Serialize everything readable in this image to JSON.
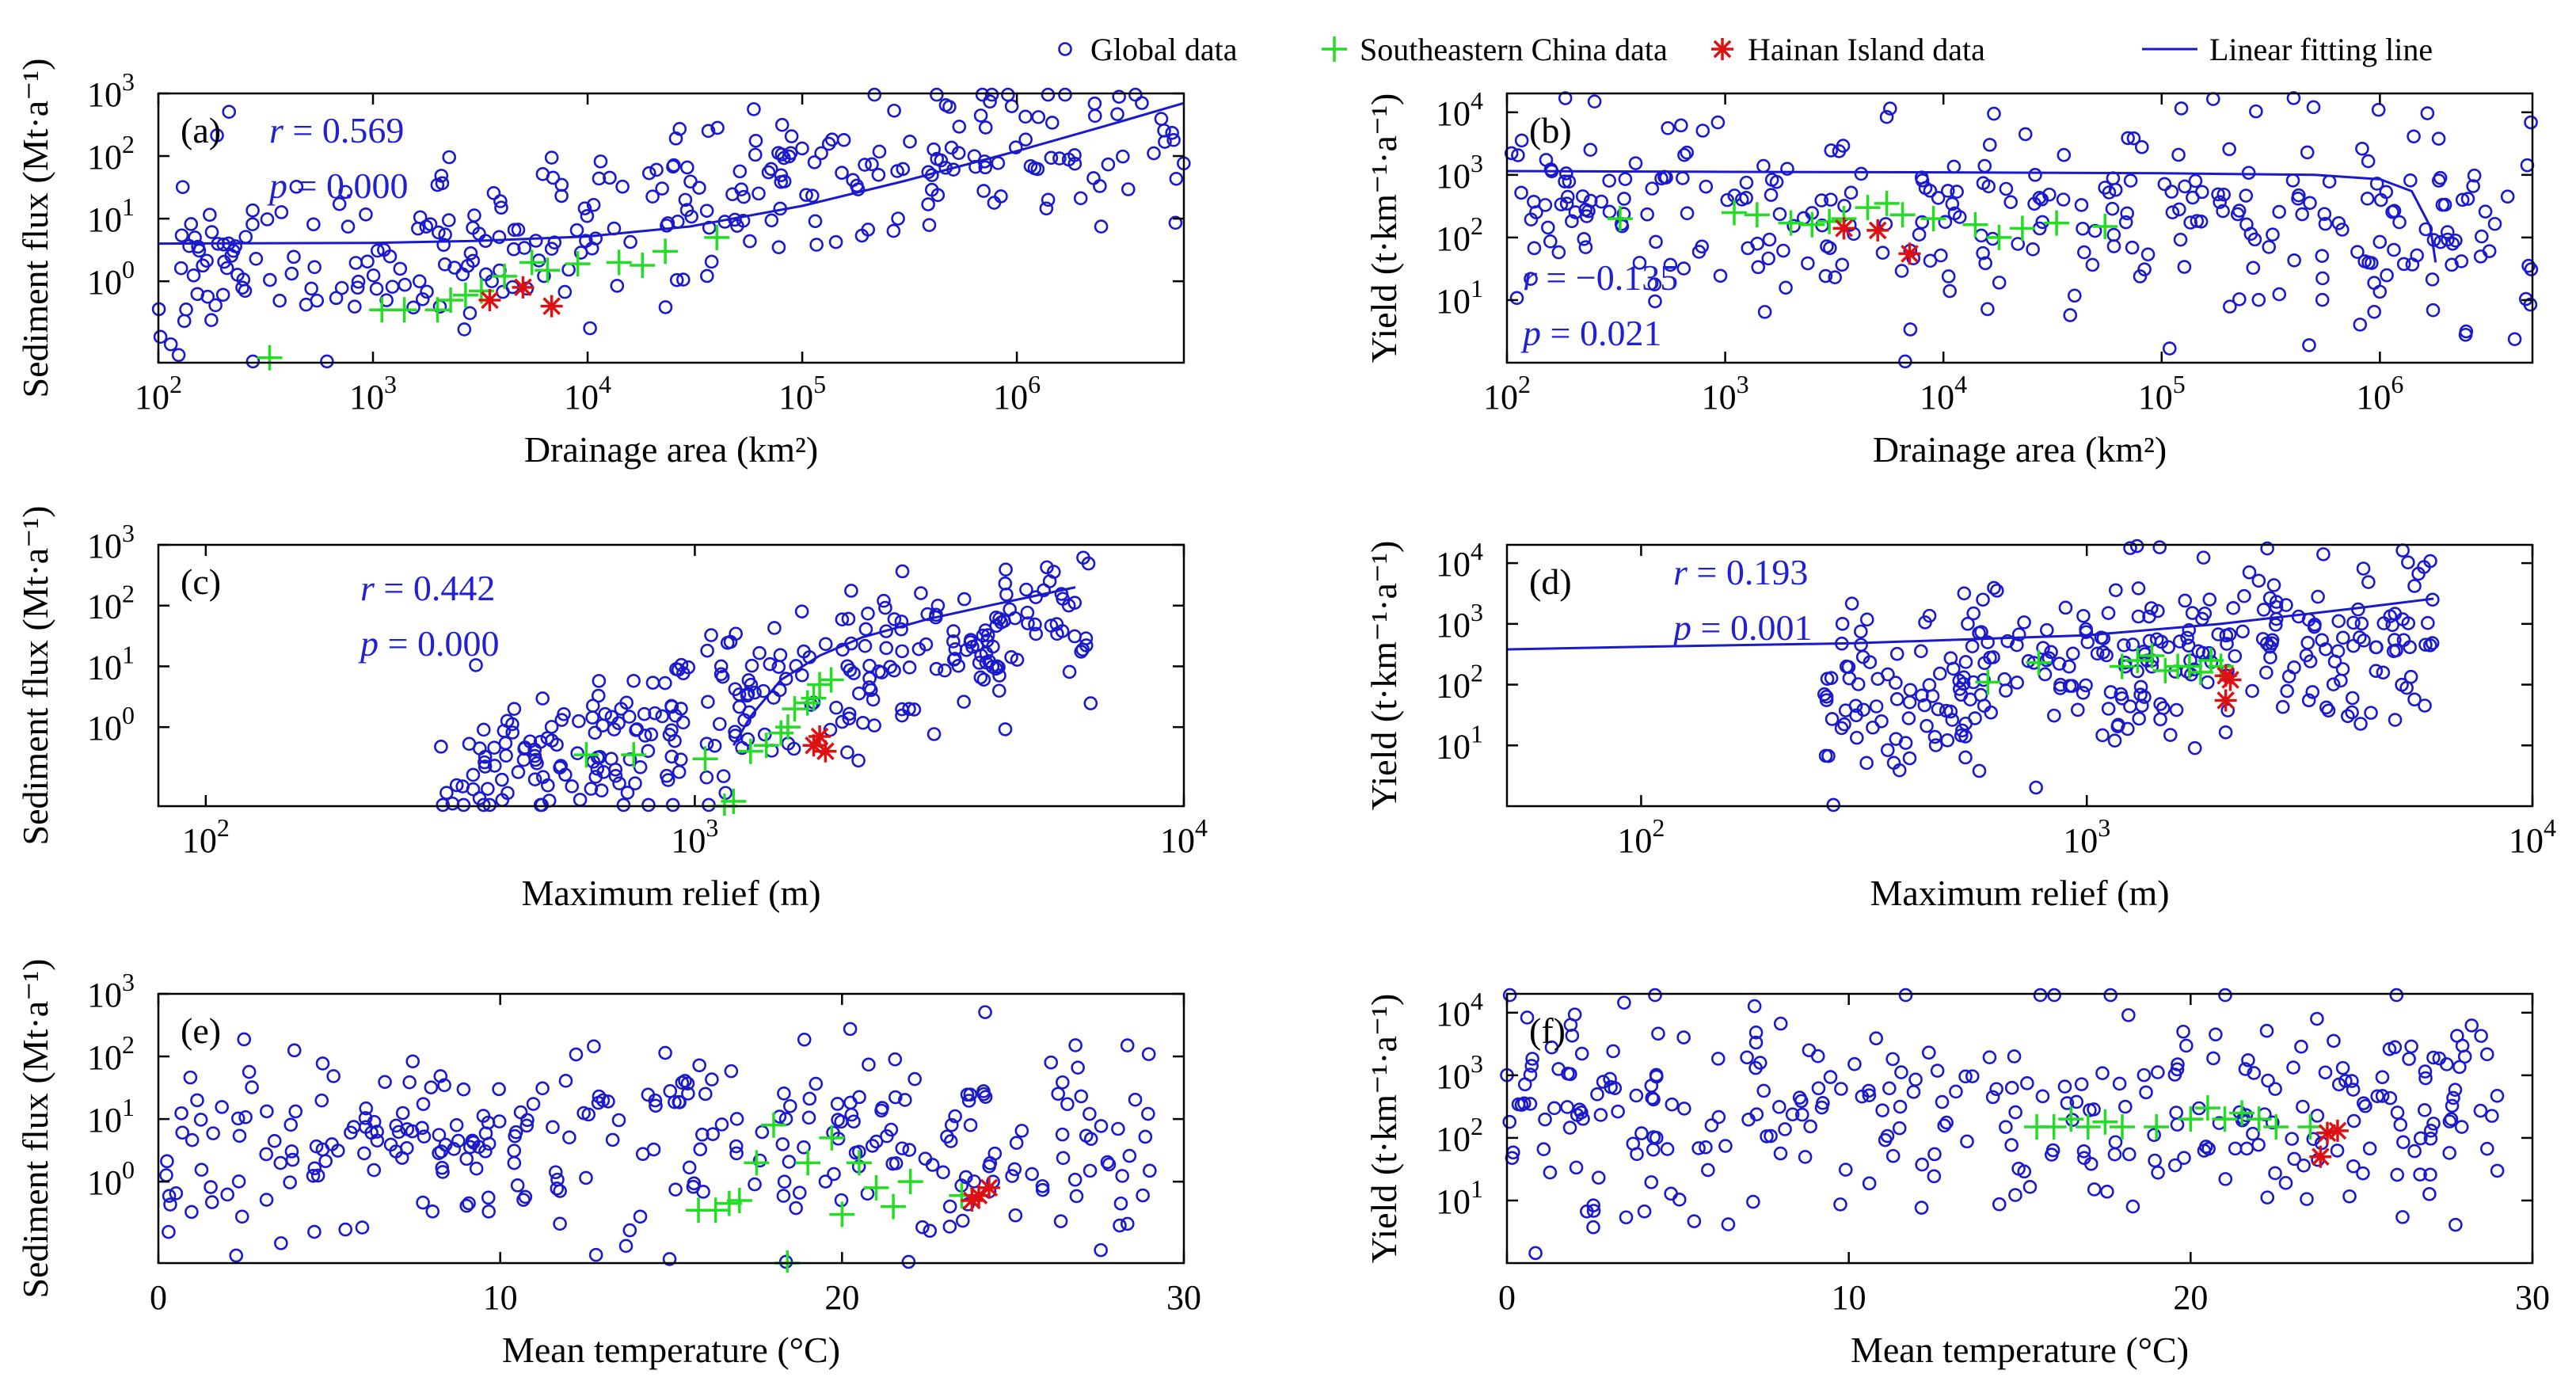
{
  "colors": {
    "global": "#1a1acc",
    "southeastern": "#22dd22",
    "hainan": "#dd1111",
    "fit": "#1a1acc",
    "stat_text": "#2222cc"
  },
  "legend": [
    {
      "label": "Global data",
      "marker": "circle",
      "color_key": "global"
    },
    {
      "label": "Southeastern China data",
      "marker": "plus",
      "color_key": "southeastern"
    },
    {
      "label": "Hainan Island data",
      "marker": "asterisk",
      "color_key": "hainan"
    },
    {
      "label": "Linear fitting line",
      "marker": "line",
      "color_key": "fit"
    }
  ],
  "chart_data": [
    {
      "id": "a",
      "type": "scatter",
      "panel_label": "(a)",
      "xlabel": "Drainage area (km²)",
      "ylabel": "Sediment flux (Mt·a⁻¹)",
      "xscale": "log",
      "yscale": "log",
      "xlim": [
        100,
        6000000
      ],
      "ylim": [
        0.05,
        1000
      ],
      "xticks": [
        100,
        1000,
        10000,
        100000,
        1000000
      ],
      "xtick_labels": [
        [
          "10",
          "2"
        ],
        [
          "10",
          "3"
        ],
        [
          "10",
          "4"
        ],
        [
          "10",
          "5"
        ],
        [
          "10",
          "6"
        ]
      ],
      "yticks": [
        1,
        10,
        100,
        1000
      ],
      "ytick_labels": [
        [
          "10",
          "0"
        ],
        [
          "10",
          "1"
        ],
        [
          "10",
          "2"
        ],
        [
          "10",
          "3"
        ]
      ],
      "stats": {
        "r": "0.569",
        "p": "0.000"
      },
      "fit_line": {
        "x": [
          100,
          1000,
          3000,
          10000,
          30000,
          100000,
          300000,
          1000000,
          3000000,
          6000000
        ],
        "y": [
          4,
          4.1,
          4.4,
          5.2,
          7.5,
          16,
          40,
          120,
          350,
          700
        ]
      },
      "seed": 11,
      "n_global": 300,
      "global_cloud": {
        "xmin": 100,
        "xmax": 6000000,
        "slope": 0.48,
        "intercept": -0.9,
        "spread": 1.0
      },
      "southeastern": [
        [
          330,
          0.06
        ],
        [
          1100,
          0.35
        ],
        [
          1400,
          0.35
        ],
        [
          2000,
          0.35
        ],
        [
          2300,
          0.5
        ],
        [
          2700,
          0.6
        ],
        [
          3200,
          0.7
        ],
        [
          4100,
          1.2
        ],
        [
          5500,
          2
        ],
        [
          6500,
          1.5
        ],
        [
          9000,
          1.9
        ],
        [
          14000,
          2
        ],
        [
          18000,
          1.8
        ],
        [
          23000,
          3
        ],
        [
          40000,
          5
        ]
      ],
      "hainan": [
        [
          3500,
          0.5
        ],
        [
          5000,
          0.8
        ],
        [
          6800,
          0.4
        ]
      ]
    },
    {
      "id": "b",
      "type": "scatter",
      "panel_label": "(b)",
      "xlabel": "Drainage area (km²)",
      "ylabel": "Yield (t·km⁻¹·a⁻¹)",
      "xscale": "log",
      "yscale": "log",
      "xlim": [
        100,
        5000000
      ],
      "ylim": [
        1,
        20000
      ],
      "xticks": [
        100,
        1000,
        10000,
        100000,
        1000000
      ],
      "xtick_labels": [
        [
          "10",
          "2"
        ],
        [
          "10",
          "3"
        ],
        [
          "10",
          "4"
        ],
        [
          "10",
          "5"
        ],
        [
          "10",
          "6"
        ]
      ],
      "yticks": [
        10,
        100,
        1000,
        10000
      ],
      "ytick_labels": [
        [
          "10",
          "1"
        ],
        [
          "10",
          "2"
        ],
        [
          "10",
          "3"
        ],
        [
          "10",
          "4"
        ]
      ],
      "stats": {
        "r": "−0.135",
        "p": "0.021"
      },
      "fit_line": {
        "x": [
          100,
          1000,
          10000,
          100000,
          500000,
          1000000,
          1400000,
          1700000,
          1800000
        ],
        "y": [
          1150,
          1120,
          1100,
          1060,
          1000,
          850,
          550,
          150,
          40
        ]
      },
      "seed": 23,
      "n_global": 300,
      "global_cloud": {
        "xmin": 100,
        "xmax": 5000000,
        "slope": -0.12,
        "intercept": 2.9,
        "spread": 1.1
      },
      "southeastern": [
        [
          330,
          200
        ],
        [
          1100,
          250
        ],
        [
          1400,
          230
        ],
        [
          2000,
          170
        ],
        [
          2500,
          160
        ],
        [
          3000,
          180
        ],
        [
          3500,
          200
        ],
        [
          4500,
          300
        ],
        [
          5500,
          350
        ],
        [
          6500,
          230
        ],
        [
          9000,
          200
        ],
        [
          14000,
          160
        ],
        [
          18000,
          100
        ],
        [
          23000,
          140
        ],
        [
          33000,
          170
        ],
        [
          55000,
          150
        ]
      ],
      "hainan": [
        [
          3500,
          140
        ],
        [
          5000,
          130
        ],
        [
          7000,
          55
        ]
      ]
    },
    {
      "id": "c",
      "type": "scatter",
      "panel_label": "(c)",
      "xlabel": "Maximum relief (m)",
      "ylabel": "Sediment flux (Mt·a⁻¹)",
      "xscale": "log",
      "yscale": "log",
      "xlim": [
        80,
        10000
      ],
      "ylim": [
        0.05,
        1000
      ],
      "xticks": [
        100,
        1000,
        10000
      ],
      "xtick_labels": [
        [
          "10",
          "2"
        ],
        [
          "10",
          "3"
        ],
        [
          "10",
          "4"
        ]
      ],
      "yticks": [
        1,
        10,
        100,
        1000
      ],
      "ytick_labels": [
        [
          "10",
          "0"
        ],
        [
          "10",
          "1"
        ],
        [
          "10",
          "2"
        ],
        [
          "10",
          "3"
        ]
      ],
      "stats": {
        "r": "0.442",
        "p": "0.000"
      },
      "fit_line": {
        "x": [
          1200,
          1300,
          1500,
          1800,
          2200,
          3000,
          4000,
          6000
        ],
        "y": [
          0.5,
          1.5,
          6,
          15,
          30,
          60,
          100,
          200
        ]
      },
      "seed": 37,
      "n_global": 300,
      "global_cloud": {
        "xmin": 300,
        "xmax": 6500,
        "slope": 2.2,
        "intercept": -6.5,
        "spread": 0.9
      },
      "southeastern": [
        [
          600,
          0.35
        ],
        [
          750,
          0.35
        ],
        [
          1050,
          0.3
        ],
        [
          1150,
          0.05
        ],
        [
          1200,
          0.06
        ],
        [
          1300,
          0.4
        ],
        [
          1400,
          0.5
        ],
        [
          1500,
          0.8
        ],
        [
          1550,
          1
        ],
        [
          1600,
          2
        ],
        [
          1700,
          2.5
        ],
        [
          1750,
          3
        ],
        [
          1800,
          5
        ],
        [
          1900,
          6
        ]
      ],
      "hainan": [
        [
          1750,
          0.5
        ],
        [
          1800,
          0.7
        ],
        [
          1850,
          0.4
        ]
      ]
    },
    {
      "id": "d",
      "type": "scatter",
      "panel_label": "(d)",
      "xlabel": "Maximum relief (m)",
      "ylabel": "Yield (t·km⁻¹·a⁻¹)",
      "xscale": "log",
      "yscale": "log",
      "xlim": [
        50,
        10000
      ],
      "ylim": [
        1,
        20000
      ],
      "xticks": [
        100,
        1000,
        10000
      ],
      "xtick_labels": [
        [
          "10",
          "2"
        ],
        [
          "10",
          "3"
        ],
        [
          "10",
          "4"
        ]
      ],
      "yticks": [
        10,
        100,
        1000,
        10000
      ],
      "ytick_labels": [
        [
          "10",
          "1"
        ],
        [
          "10",
          "2"
        ],
        [
          "10",
          "3"
        ],
        [
          "10",
          "4"
        ]
      ],
      "stats": {
        "r": "0.193",
        "p": "0.001"
      },
      "fit_line": {
        "x": [
          50,
          100,
          300,
          1000,
          2000,
          4000,
          6000
        ],
        "y": [
          380,
          420,
          480,
          650,
          1000,
          1800,
          2600
        ]
      },
      "seed": 41,
      "n_global": 300,
      "global_cloud": {
        "xmin": 250,
        "xmax": 6000,
        "slope": 0.8,
        "intercept": -0.2,
        "spread": 1.1
      },
      "southeastern": [
        [
          600,
          110
        ],
        [
          780,
          230
        ],
        [
          1200,
          200
        ],
        [
          1300,
          250
        ],
        [
          1400,
          300
        ],
        [
          1500,
          170
        ],
        [
          1600,
          200
        ],
        [
          1700,
          200
        ],
        [
          1800,
          160
        ],
        [
          1900,
          250
        ],
        [
          2000,
          200
        ]
      ],
      "hainan": [
        [
          2050,
          140
        ],
        [
          2100,
          120
        ],
        [
          2050,
          55
        ]
      ]
    },
    {
      "id": "e",
      "type": "scatter",
      "panel_label": "(e)",
      "xlabel": "Mean temperature (°C)",
      "ylabel": "Sediment flux (Mt·a⁻¹)",
      "xscale": "linear",
      "yscale": "log",
      "xlim": [
        0,
        30
      ],
      "ylim": [
        0.05,
        1000
      ],
      "xticks": [
        0,
        10,
        20,
        30
      ],
      "xtick_labels": [
        [
          "0",
          ""
        ],
        [
          "10",
          ""
        ],
        [
          "20",
          ""
        ],
        [
          "30",
          ""
        ]
      ],
      "yticks": [
        1,
        10,
        100,
        1000
      ],
      "ytick_labels": [
        [
          "10",
          "0"
        ],
        [
          "10",
          "1"
        ],
        [
          "10",
          "2"
        ],
        [
          "10",
          "3"
        ]
      ],
      "stats": null,
      "fit_line": null,
      "seed": 53,
      "n_global": 300,
      "global_cloud": {
        "xmin": 0,
        "xmax": 29,
        "slope": 0,
        "intercept": 0.6,
        "spread": 1.1
      },
      "southeastern": [
        [
          15.8,
          0.35
        ],
        [
          16.3,
          0.35
        ],
        [
          16.7,
          0.45
        ],
        [
          17.0,
          0.5
        ],
        [
          17.5,
          2
        ],
        [
          18.0,
          8
        ],
        [
          18.4,
          0.05
        ],
        [
          19.0,
          2
        ],
        [
          19.7,
          5
        ],
        [
          20.0,
          0.3
        ],
        [
          20.5,
          2
        ],
        [
          21.0,
          0.8
        ],
        [
          21.5,
          0.4
        ],
        [
          22.0,
          1
        ],
        [
          23.5,
          0.6
        ]
      ],
      "hainan": [
        [
          23.8,
          0.5
        ],
        [
          24.0,
          0.6
        ],
        [
          24.3,
          0.8
        ]
      ]
    },
    {
      "id": "f",
      "type": "scatter",
      "panel_label": "(f)",
      "xlabel": "Mean temperature (°C)",
      "ylabel": "Yield (t·km⁻¹·a⁻¹)",
      "xscale": "linear",
      "yscale": "log",
      "xlim": [
        0,
        30
      ],
      "ylim": [
        1,
        20000
      ],
      "xticks": [
        0,
        10,
        20,
        30
      ],
      "xtick_labels": [
        [
          "0",
          ""
        ],
        [
          "10",
          ""
        ],
        [
          "20",
          ""
        ],
        [
          "30",
          ""
        ]
      ],
      "yticks": [
        10,
        100,
        1000,
        10000
      ],
      "ytick_labels": [
        [
          "10",
          "1"
        ],
        [
          "10",
          "2"
        ],
        [
          "10",
          "3"
        ],
        [
          "10",
          "4"
        ]
      ],
      "stats": null,
      "fit_line": null,
      "seed": 67,
      "n_global": 300,
      "global_cloud": {
        "xmin": 0,
        "xmax": 29,
        "slope": 0,
        "intercept": 2.4,
        "spread": 1.1
      },
      "southeastern": [
        [
          15.5,
          150
        ],
        [
          16.0,
          150
        ],
        [
          16.5,
          200
        ],
        [
          17.0,
          150
        ],
        [
          17.5,
          180
        ],
        [
          18.0,
          150
        ],
        [
          19.0,
          150
        ],
        [
          20.0,
          200
        ],
        [
          20.5,
          300
        ],
        [
          21.0,
          200
        ],
        [
          21.5,
          250
        ],
        [
          22.0,
          200
        ],
        [
          22.5,
          150
        ],
        [
          23.5,
          150
        ]
      ],
      "hainan": [
        [
          23.8,
          50
        ],
        [
          24.0,
          120
        ],
        [
          24.3,
          130
        ]
      ]
    }
  ]
}
